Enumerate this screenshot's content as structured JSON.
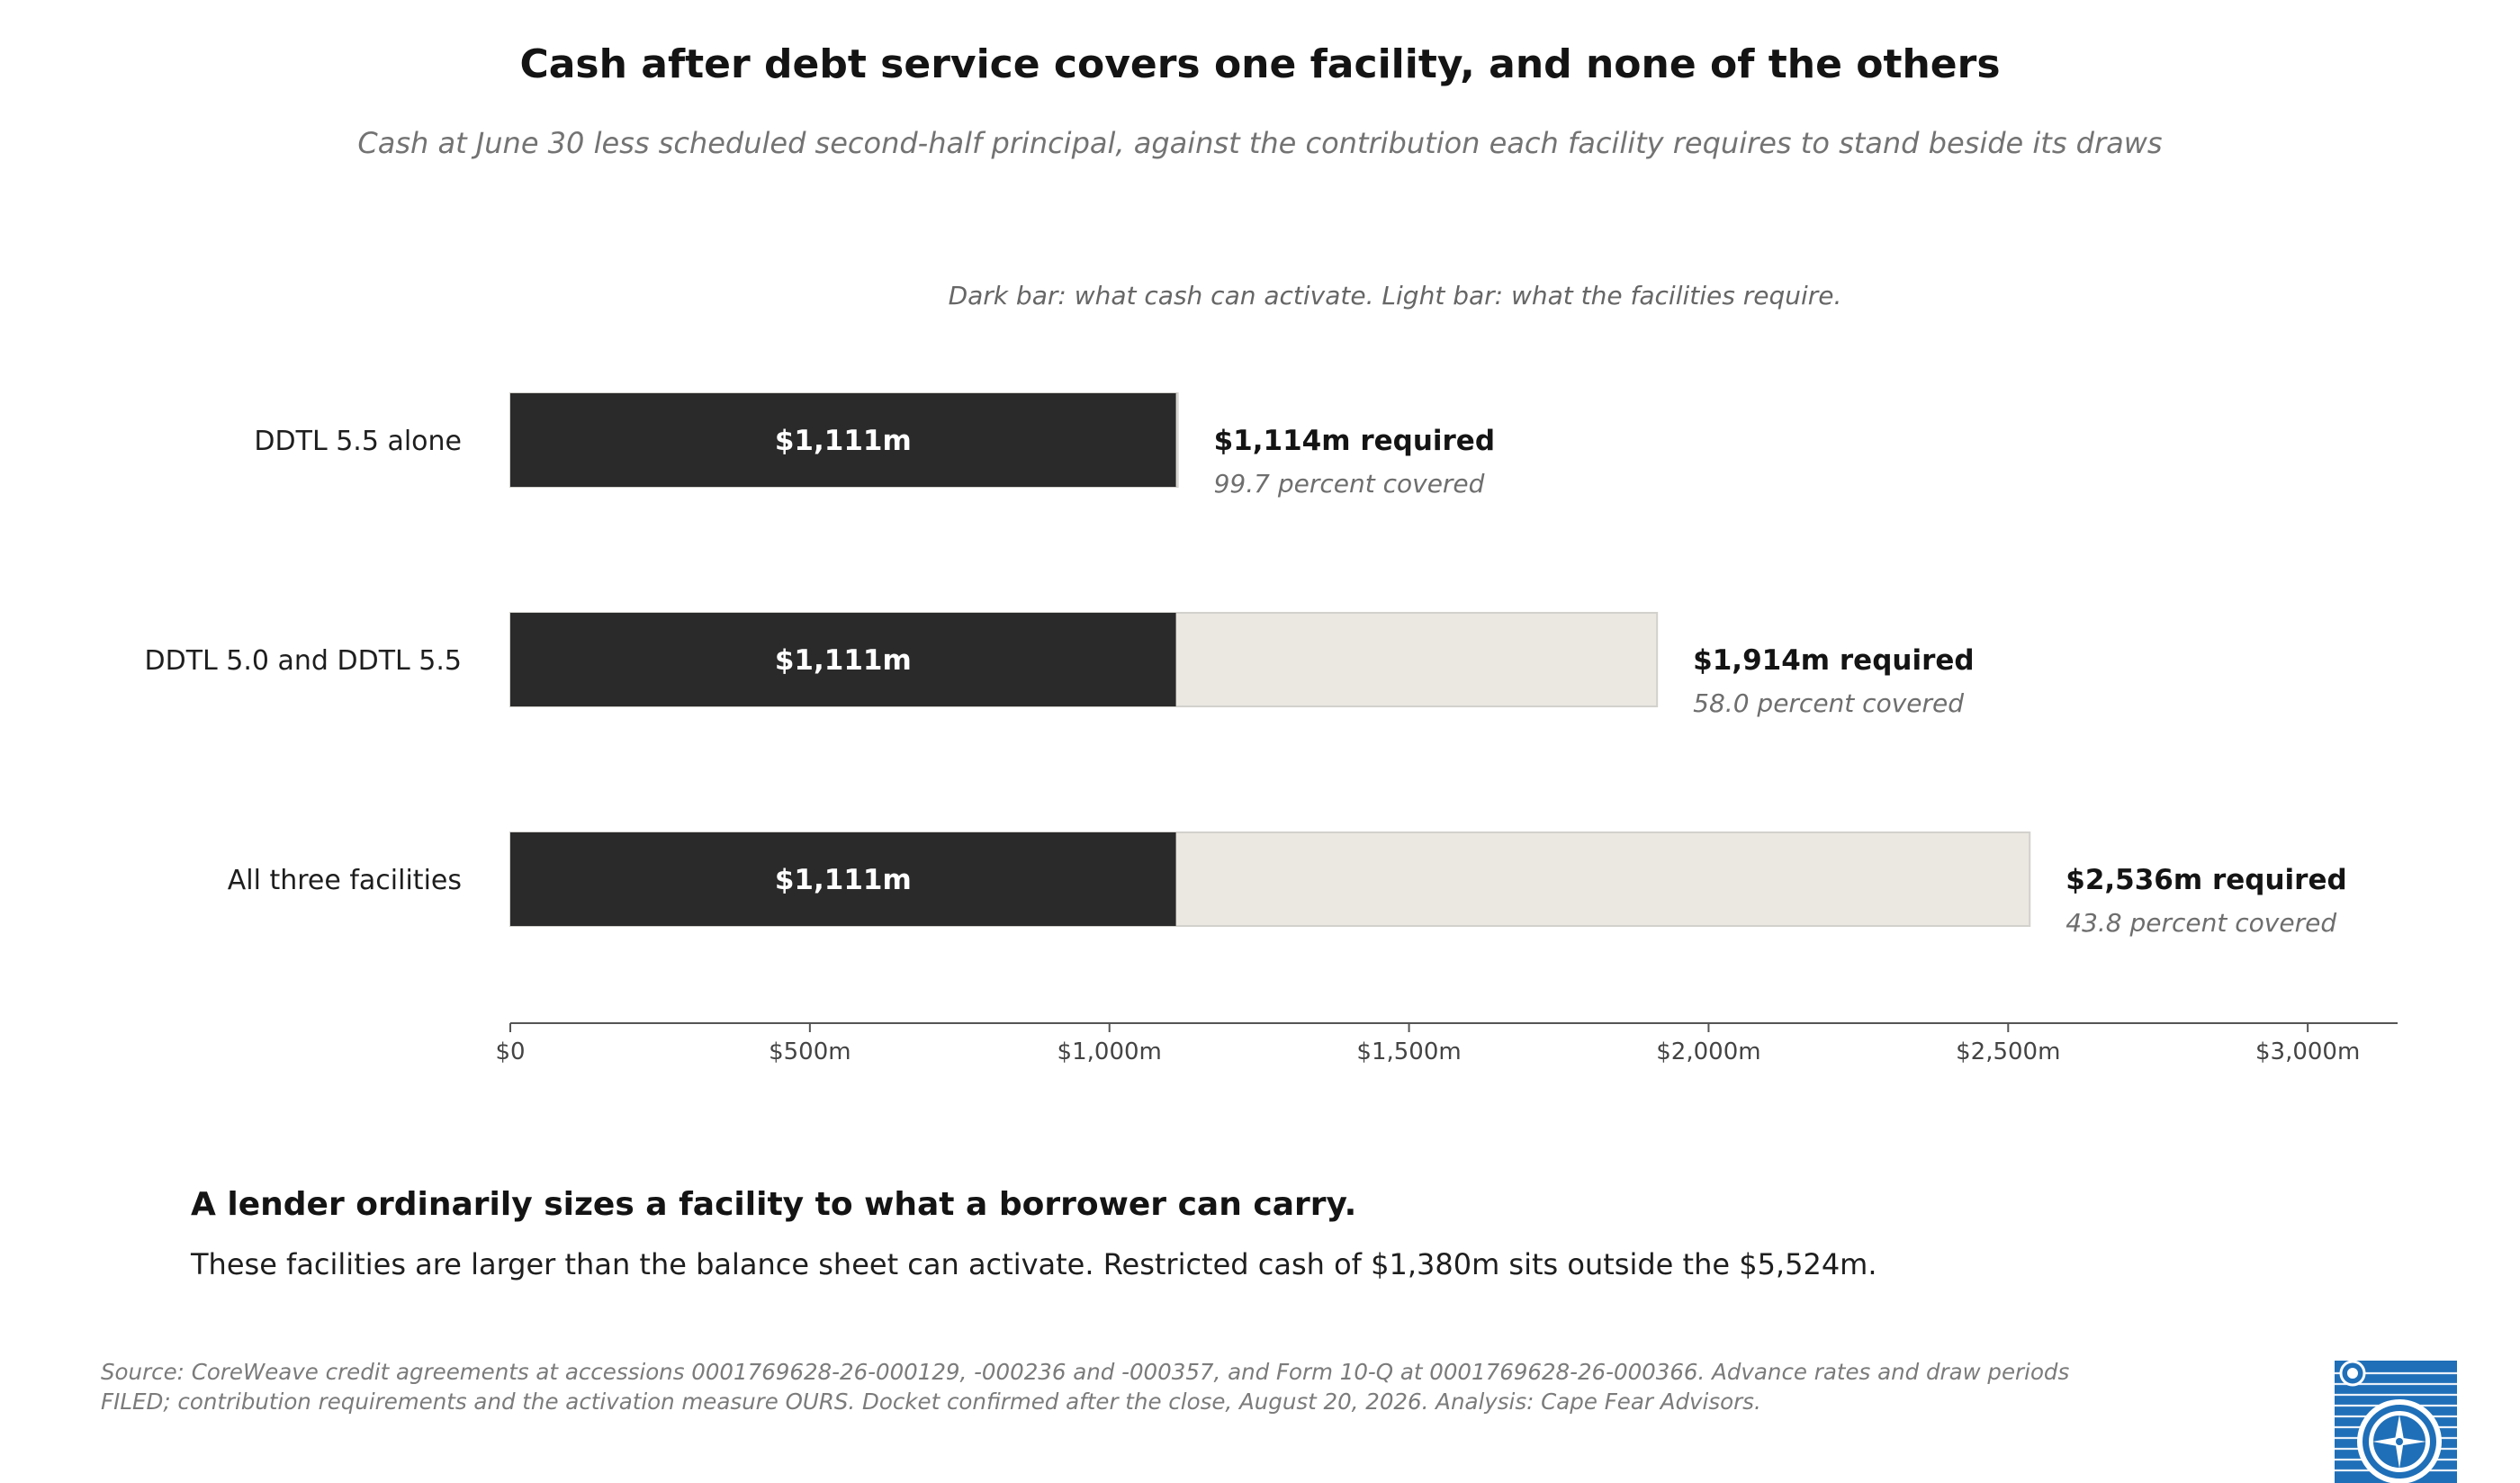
{
  "title": "Cash after debt service covers one facility, and none of the others",
  "subtitle": "Cash at June 30 less scheduled second-half principal, against the contribution each facility requires to stand beside its draws",
  "legend_note": "Dark bar: what cash can activate. Light bar: what the facilities require.",
  "colors": {
    "cash_bar": "#2a2a2a",
    "required_bar": "#ebe8e2",
    "required_border": "#d3d1cc",
    "axis": "#555555",
    "logo_blue": "#1f6fb8"
  },
  "chart_data": {
    "type": "bar",
    "orientation": "horizontal",
    "categories": [
      "DDTL 5.5 alone",
      "DDTL 5.0 and DDTL 5.5",
      "All three facilities"
    ],
    "series": [
      {
        "name": "Dark bar: what cash can activate",
        "values": [
          1111,
          1111,
          1111
        ]
      },
      {
        "name": "Light bar: what the facilities require",
        "values": [
          1114,
          1914,
          2536
        ]
      }
    ],
    "bar_labels": [
      "$1,111m",
      "$1,111m",
      "$1,111m"
    ],
    "required_labels": [
      "$1,114m required",
      "$1,914m required",
      "$2,536m required"
    ],
    "coverage_labels": [
      "99.7 percent covered",
      "58.0 percent covered",
      "43.8 percent covered"
    ],
    "xlim": [
      0,
      3150
    ],
    "xticks": [
      0,
      500,
      1000,
      1500,
      2000,
      2500,
      3000
    ],
    "xtick_labels": [
      "$0",
      "$500m",
      "$1,000m",
      "$1,500m",
      "$2,000m",
      "$2,500m",
      "$3,000m"
    ],
    "xlabel": "",
    "ylabel": "",
    "grid": false
  },
  "takeaway": {
    "headline": "A lender ordinarily sizes a facility to what a borrower can carry.",
    "body": "These facilities are larger than the balance sheet can activate. Restricted cash of $1,380m sits outside the $5,524m."
  },
  "source": {
    "line1": "Source: CoreWeave credit agreements at accessions 0001769628-26-000129, -000236 and -000357, and Form 10-Q at 0001769628-26-000366. Advance rates and draw periods",
    "line2": "FILED; contribution requirements and the activation measure OURS. Docket confirmed after the close, August 20, 2026. Analysis: Cape Fear Advisors."
  },
  "logo": {
    "icon": "compass-globe-logo"
  }
}
